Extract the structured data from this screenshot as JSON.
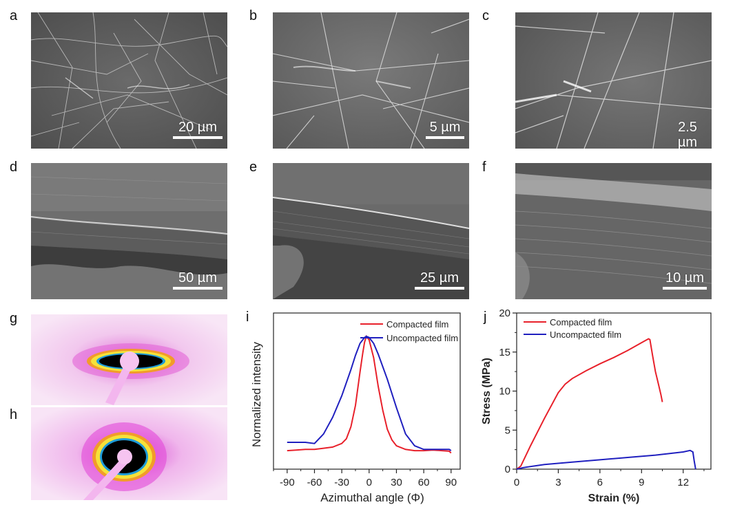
{
  "panels": {
    "a": {
      "label": "a",
      "scale": "20 µm"
    },
    "b": {
      "label": "b",
      "scale": "5 µm"
    },
    "c": {
      "label": "c",
      "scale": "2.5 µm"
    },
    "d": {
      "label": "d",
      "scale": "50 µm"
    },
    "e": {
      "label": "e",
      "scale": "25 µm"
    },
    "f": {
      "label": "f",
      "scale": "10 µm"
    },
    "g": {
      "label": "g"
    },
    "h": {
      "label": "h"
    },
    "i": {
      "label": "i"
    },
    "j": {
      "label": "j"
    }
  },
  "colors": {
    "compacted": "#e8202a",
    "uncompacted": "#1f1fbf"
  },
  "chart_data": [
    {
      "id": "i",
      "type": "line",
      "xlabel": "Azimuthal angle (Φ)",
      "ylabel": "Normalized intensity",
      "xlim": [
        -105,
        100
      ],
      "xticks": [
        "-90",
        "-60",
        "-30",
        "0",
        "30",
        "60",
        "90"
      ],
      "legend_position": "top-right",
      "series": [
        {
          "name": "Compacted film",
          "color": "#e8202a",
          "x": [
            -90,
            -80,
            -70,
            -60,
            -50,
            -40,
            -30,
            -25,
            -20,
            -15,
            -10,
            -7,
            -5,
            -3,
            0,
            5,
            10,
            15,
            20,
            25,
            30,
            40,
            50,
            60,
            70,
            80,
            88,
            90
          ],
          "y": [
            0.04,
            0.045,
            0.05,
            0.05,
            0.06,
            0.07,
            0.1,
            0.14,
            0.24,
            0.42,
            0.7,
            0.86,
            0.95,
            1.0,
            0.97,
            0.82,
            0.58,
            0.38,
            0.22,
            0.13,
            0.08,
            0.05,
            0.04,
            0.04,
            0.045,
            0.04,
            0.035,
            0.02
          ]
        },
        {
          "name": "Uncompacted film",
          "color": "#1f1fbf",
          "x": [
            -90,
            -80,
            -70,
            -60,
            -50,
            -40,
            -30,
            -20,
            -15,
            -10,
            -5,
            -3,
            0,
            5,
            10,
            20,
            30,
            40,
            50,
            60,
            70,
            80,
            88,
            90
          ],
          "y": [
            0.11,
            0.11,
            0.11,
            0.1,
            0.18,
            0.32,
            0.5,
            0.72,
            0.84,
            0.94,
            0.99,
            1.0,
            0.99,
            0.94,
            0.85,
            0.64,
            0.4,
            0.18,
            0.08,
            0.05,
            0.05,
            0.05,
            0.05,
            0.04
          ]
        }
      ]
    },
    {
      "id": "j",
      "type": "line",
      "xlabel": "Strain (%)",
      "ylabel": "Stress (MPa)",
      "xlim": [
        0,
        14
      ],
      "ylim": [
        0,
        20
      ],
      "xticks": [
        0,
        3,
        6,
        9,
        12
      ],
      "yticks": [
        0,
        5,
        10,
        15,
        20
      ],
      "legend_position": "top-left",
      "series": [
        {
          "name": "Compacted film",
          "color": "#e8202a",
          "x": [
            0,
            0.3,
            1,
            2,
            3,
            3.5,
            4,
            5,
            6,
            7,
            8,
            9,
            9.5,
            9.6,
            9.8,
            10.0,
            10.2,
            10.4,
            10.5
          ],
          "y": [
            0,
            0.4,
            3.0,
            6.5,
            9.8,
            10.9,
            11.6,
            12.6,
            13.5,
            14.3,
            15.2,
            16.2,
            16.7,
            16.6,
            14.5,
            12.5,
            11.0,
            9.5,
            8.6
          ]
        },
        {
          "name": "Uncompacted film",
          "color": "#1f1fbf",
          "x": [
            0,
            0.5,
            2,
            4,
            6,
            8,
            10,
            12,
            12.5,
            12.7,
            12.8,
            12.9
          ],
          "y": [
            0,
            0.2,
            0.6,
            0.9,
            1.2,
            1.5,
            1.8,
            2.2,
            2.4,
            2.2,
            1.0,
            0.0
          ]
        }
      ]
    }
  ]
}
